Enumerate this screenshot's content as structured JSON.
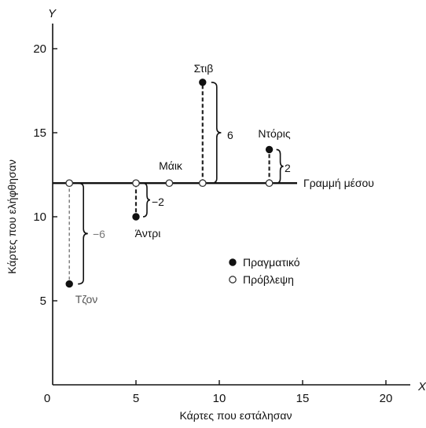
{
  "chart_data": {
    "type": "scatter",
    "x_axis_letter": "X",
    "y_axis_letter": "Y",
    "xlabel": "Κάρτες που εστάλησαν",
    "ylabel": "Κάρτες που ελήφθησαν",
    "xlim": [
      0,
      22
    ],
    "ylim": [
      0,
      22
    ],
    "x_ticks": [
      0,
      5,
      10,
      15,
      20
    ],
    "y_ticks": [
      5,
      10,
      15,
      20
    ],
    "mean_line": {
      "y": 12,
      "label": "Γραμμή μέσου"
    },
    "series": [
      {
        "name": "Πραγματικό",
        "marker": "filled"
      },
      {
        "name": "Πρόβλεψη",
        "marker": "hollow"
      }
    ],
    "points": [
      {
        "name": "Τζον",
        "x": 1,
        "actual": 6,
        "predicted": 12,
        "residual_label": "−6",
        "residual_color": "#777777"
      },
      {
        "name": "Άντρι",
        "x": 5,
        "actual": 10,
        "predicted": 12,
        "residual_label": "−2",
        "residual_color": "#222222"
      },
      {
        "name": "Μάικ",
        "x": 7,
        "actual": 12,
        "predicted": 12,
        "residual_label": "",
        "residual_color": "#222222"
      },
      {
        "name": "Στιβ",
        "x": 9,
        "actual": 18,
        "predicted": 12,
        "residual_label": "6",
        "residual_color": "#222222"
      },
      {
        "name": "Ντόρις",
        "x": 13,
        "actual": 14,
        "predicted": 12,
        "residual_label": "2",
        "residual_color": "#222222"
      }
    ],
    "legend_placement": "center-right",
    "grid": false
  }
}
